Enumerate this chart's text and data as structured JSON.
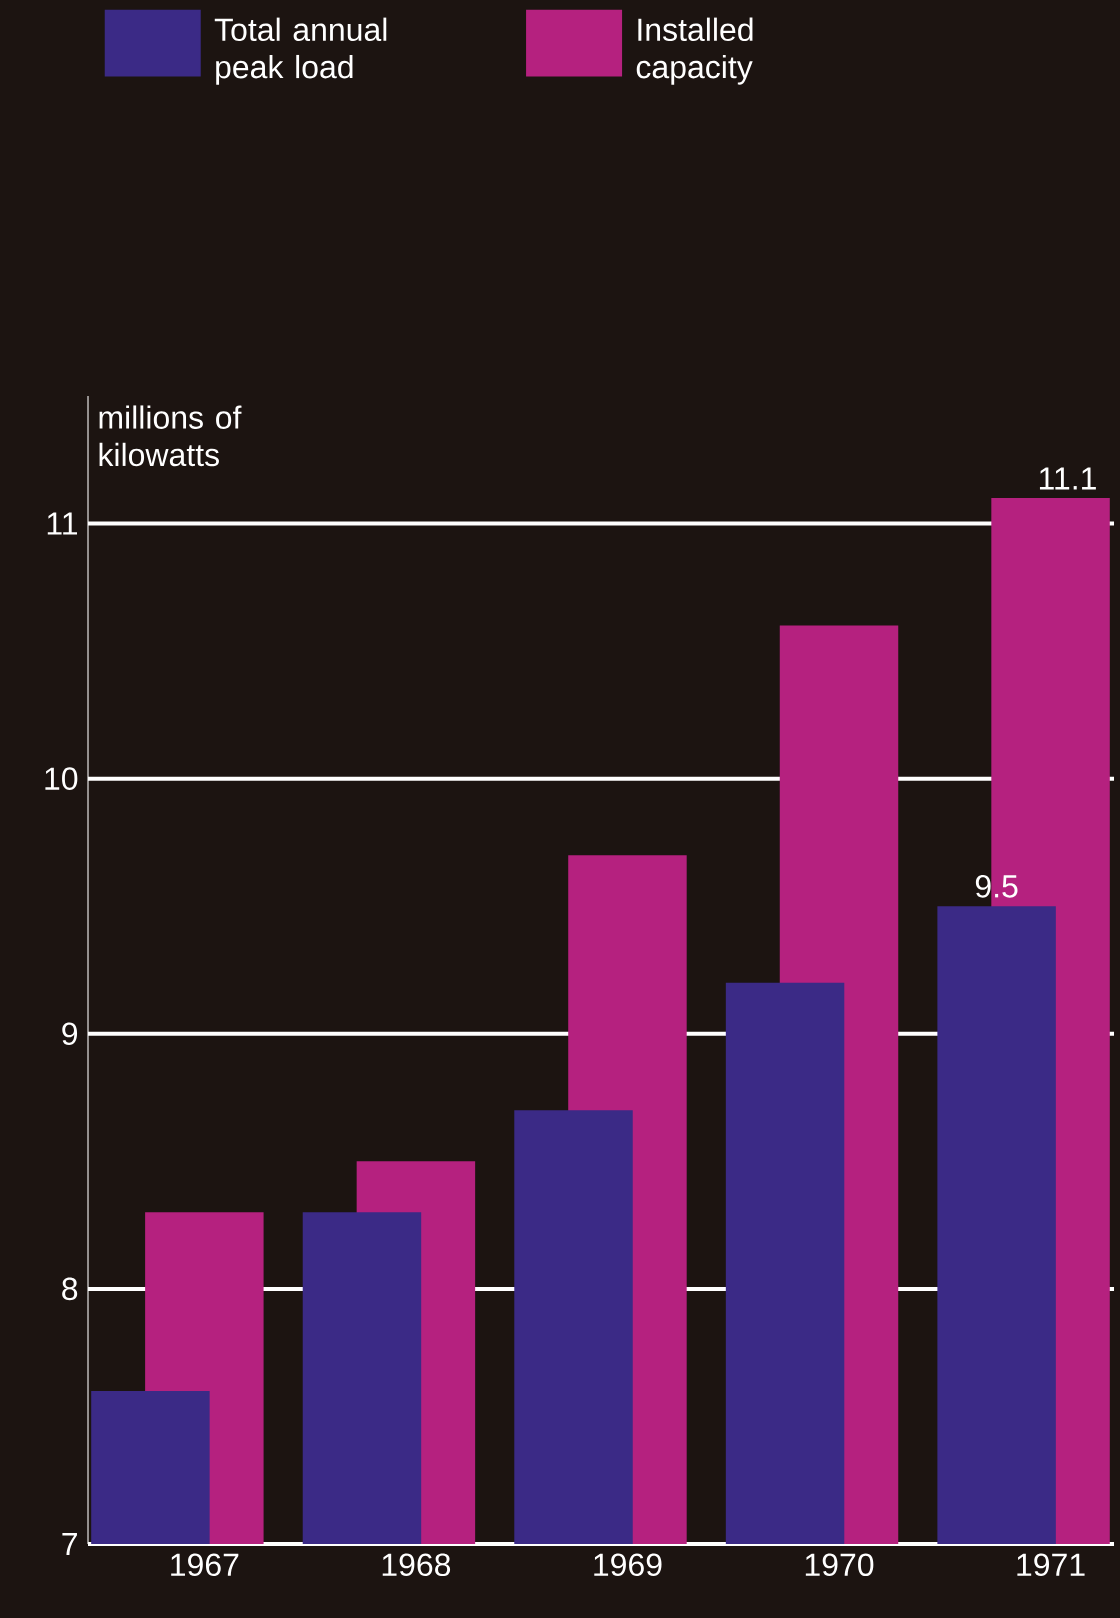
{
  "chart_data": {
    "type": "bar",
    "ylabel": "millions of kilowatts",
    "categories": [
      "1967",
      "1968",
      "1969",
      "1970",
      "1971"
    ],
    "series": [
      {
        "name": "Total annual peak load",
        "color": "#3b2a86",
        "values": [
          7.6,
          8.3,
          8.7,
          9.2,
          9.5
        ],
        "value_labels": [
          null,
          null,
          null,
          null,
          "9.5"
        ]
      },
      {
        "name": "Installed capacity",
        "color": "#b5217f",
        "values": [
          8.3,
          8.5,
          9.7,
          10.6,
          11.1
        ],
        "value_labels": [
          null,
          null,
          null,
          null,
          "11.1"
        ]
      }
    ],
    "ylim": [
      7,
      11.5
    ],
    "yticks": [
      7,
      8,
      9,
      10,
      11
    ],
    "grid": "y",
    "legend": "top left"
  }
}
